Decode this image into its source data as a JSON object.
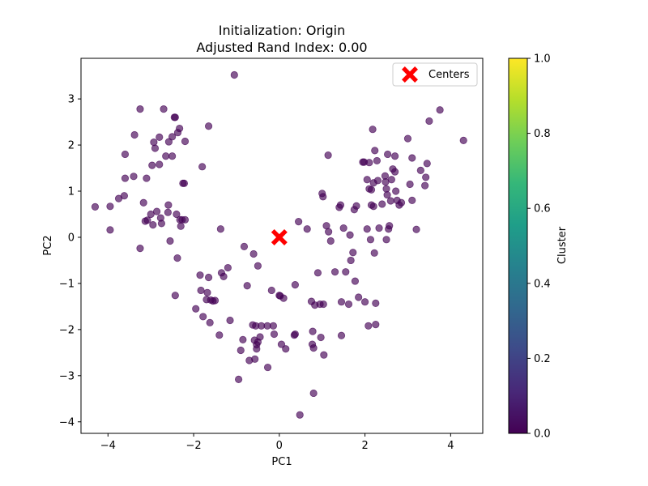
{
  "chart_data": {
    "type": "scatter",
    "title": "Initialization: Origin",
    "subtitle": "Adjusted Rand Index: 0.00",
    "xlabel": "PC1",
    "ylabel": "PC2",
    "xlim": [
      -4.63,
      4.75
    ],
    "ylim": [
      -4.25,
      3.88
    ],
    "xticks": [
      -4,
      -2,
      0,
      2,
      4
    ],
    "yticks": [
      -4,
      -3,
      -2,
      -1,
      0,
      1,
      2,
      3
    ],
    "xtick_labels": [
      "−4",
      "−2",
      "0",
      "2",
      "4"
    ],
    "ytick_labels": [
      "−4",
      "−3",
      "−2",
      "−1",
      "0",
      "1",
      "2",
      "3"
    ],
    "grid": false,
    "legend": {
      "position": "top-right",
      "entries": [
        "Centers"
      ]
    },
    "colorbar": {
      "label": "Cluster",
      "range": [
        0,
        1
      ],
      "ticks": [
        0.0,
        0.2,
        0.4,
        0.6,
        0.8,
        1.0
      ],
      "tick_labels": [
        "0.0",
        "0.2",
        "0.4",
        "0.6",
        "0.8",
        "1.0"
      ],
      "colormap": "viridis",
      "colors": [
        "#440154",
        "#482878",
        "#3e4a89",
        "#31688e",
        "#26828e",
        "#1f9e89",
        "#35b779",
        "#6ece58",
        "#b5de2b",
        "#fde725"
      ]
    },
    "point_color": "#440154",
    "point_alpha": 0.65,
    "center_color": "#ff0000",
    "centers": [
      [
        0.0,
        0.0
      ]
    ],
    "points": [
      [
        -4.3,
        0.66
      ],
      [
        -3.95,
        0.67
      ],
      [
        -3.95,
        0.16
      ],
      [
        -3.75,
        0.84
      ],
      [
        -3.62,
        0.9
      ],
      [
        -3.6,
        1.28
      ],
      [
        -3.6,
        1.8
      ],
      [
        -3.4,
        1.32
      ],
      [
        -3.38,
        2.22
      ],
      [
        -3.25,
        2.78
      ],
      [
        -3.25,
        -0.24
      ],
      [
        -3.17,
        0.75
      ],
      [
        -3.13,
        0.35
      ],
      [
        -3.1,
        1.28
      ],
      [
        -3.08,
        0.37
      ],
      [
        -3.0,
        0.5
      ],
      [
        -2.97,
        1.56
      ],
      [
        -2.95,
        0.27
      ],
      [
        -2.93,
        2.06
      ],
      [
        -2.9,
        1.93
      ],
      [
        -2.86,
        0.56
      ],
      [
        -2.8,
        1.58
      ],
      [
        -2.8,
        2.17
      ],
      [
        -2.77,
        0.42
      ],
      [
        -2.75,
        0.3
      ],
      [
        -2.7,
        2.78
      ],
      [
        -2.65,
        1.76
      ],
      [
        -2.6,
        0.54
      ],
      [
        -2.59,
        0.7
      ],
      [
        -2.58,
        2.07
      ],
      [
        -2.55,
        -0.08
      ],
      [
        -2.5,
        1.76
      ],
      [
        -2.5,
        2.18
      ],
      [
        -2.45,
        2.6
      ],
      [
        -2.43,
        2.6
      ],
      [
        -2.43,
        -1.26
      ],
      [
        -2.4,
        0.5
      ],
      [
        -2.38,
        -0.45
      ],
      [
        -2.37,
        2.27
      ],
      [
        -2.33,
        2.36
      ],
      [
        -2.32,
        0.38
      ],
      [
        -2.3,
        0.24
      ],
      [
        -2.27,
        0.38
      ],
      [
        -2.25,
        1.17
      ],
      [
        -2.22,
        1.17
      ],
      [
        -2.2,
        2.08
      ],
      [
        -2.2,
        0.38
      ],
      [
        -1.95,
        -1.55
      ],
      [
        -1.85,
        -0.82
      ],
      [
        -1.83,
        -1.15
      ],
      [
        -1.8,
        1.53
      ],
      [
        -1.78,
        -1.72
      ],
      [
        -1.7,
        -1.35
      ],
      [
        -1.68,
        -1.2
      ],
      [
        -1.65,
        2.41
      ],
      [
        -1.65,
        -0.87
      ],
      [
        -1.62,
        -1.85
      ],
      [
        -1.6,
        -1.36
      ],
      [
        -1.55,
        -1.38
      ],
      [
        -1.5,
        -1.37
      ],
      [
        -1.4,
        -2.12
      ],
      [
        -1.37,
        0.18
      ],
      [
        -1.35,
        -0.77
      ],
      [
        -1.3,
        -0.85
      ],
      [
        -1.2,
        -0.66
      ],
      [
        -1.15,
        -1.8
      ],
      [
        -1.05,
        3.52
      ],
      [
        -0.95,
        -3.08
      ],
      [
        -0.9,
        -2.45
      ],
      [
        -0.85,
        -2.22
      ],
      [
        -0.82,
        -0.2
      ],
      [
        -0.75,
        -1.05
      ],
      [
        -0.7,
        -2.67
      ],
      [
        -0.62,
        -1.9
      ],
      [
        -0.6,
        -0.36
      ],
      [
        -0.58,
        -2.23
      ],
      [
        -0.57,
        -2.64
      ],
      [
        -0.55,
        -1.92
      ],
      [
        -0.53,
        -2.33
      ],
      [
        -0.53,
        -2.42
      ],
      [
        -0.5,
        -2.27
      ],
      [
        -0.5,
        -0.62
      ],
      [
        -0.45,
        -2.16
      ],
      [
        -0.42,
        -1.92
      ],
      [
        -0.28,
        -1.92
      ],
      [
        -0.27,
        -2.82
      ],
      [
        -0.18,
        -1.15
      ],
      [
        -0.14,
        -1.92
      ],
      [
        -0.12,
        -2.1
      ],
      [
        0.0,
        -1.26
      ],
      [
        0.02,
        -1.27
      ],
      [
        0.05,
        -2.32
      ],
      [
        0.1,
        -1.32
      ],
      [
        0.15,
        -2.42
      ],
      [
        0.35,
        -2.12
      ],
      [
        0.37,
        -2.1
      ],
      [
        0.37,
        -1.03
      ],
      [
        0.45,
        0.34
      ],
      [
        0.48,
        -3.85
      ],
      [
        0.65,
        0.18
      ],
      [
        0.75,
        -1.39
      ],
      [
        0.77,
        -2.32
      ],
      [
        0.78,
        -2.04
      ],
      [
        0.8,
        -2.4
      ],
      [
        0.8,
        -3.38
      ],
      [
        0.83,
        -1.47
      ],
      [
        0.9,
        -0.77
      ],
      [
        0.95,
        -1.45
      ],
      [
        0.97,
        -2.17
      ],
      [
        1.0,
        0.95
      ],
      [
        1.02,
        0.88
      ],
      [
        1.03,
        -1.45
      ],
      [
        1.04,
        -2.55
      ],
      [
        1.1,
        0.25
      ],
      [
        1.14,
        1.78
      ],
      [
        1.15,
        0.12
      ],
      [
        1.2,
        -0.08
      ],
      [
        1.3,
        -0.75
      ],
      [
        1.4,
        0.65
      ],
      [
        1.43,
        0.7
      ],
      [
        1.45,
        -1.4
      ],
      [
        1.45,
        -2.13
      ],
      [
        1.5,
        0.2
      ],
      [
        1.55,
        -0.75
      ],
      [
        1.62,
        -1.45
      ],
      [
        1.65,
        0.05
      ],
      [
        1.67,
        -0.5
      ],
      [
        1.72,
        -0.33
      ],
      [
        1.75,
        0.6
      ],
      [
        1.77,
        -0.95
      ],
      [
        1.8,
        0.68
      ],
      [
        1.85,
        -1.3
      ],
      [
        1.95,
        1.63
      ],
      [
        1.98,
        1.63
      ],
      [
        2.0,
        -1.4
      ],
      [
        2.05,
        1.25
      ],
      [
        2.05,
        0.18
      ],
      [
        2.08,
        -1.92
      ],
      [
        2.1,
        1.05
      ],
      [
        2.1,
        1.62
      ],
      [
        2.13,
        -0.05
      ],
      [
        2.15,
        1.03
      ],
      [
        2.15,
        0.7
      ],
      [
        2.18,
        2.34
      ],
      [
        2.2,
        0.67
      ],
      [
        2.2,
        1.18
      ],
      [
        2.22,
        -0.34
      ],
      [
        2.23,
        1.88
      ],
      [
        2.25,
        -1.89
      ],
      [
        2.25,
        -1.43
      ],
      [
        2.28,
        1.66
      ],
      [
        2.3,
        1.23
      ],
      [
        2.33,
        0.2
      ],
      [
        2.4,
        0.72
      ],
      [
        2.47,
        1.33
      ],
      [
        2.48,
        1.2
      ],
      [
        2.5,
        1.05
      ],
      [
        2.5,
        -0.05
      ],
      [
        2.52,
        0.92
      ],
      [
        2.53,
        1.8
      ],
      [
        2.55,
        0.18
      ],
      [
        2.57,
        0.25
      ],
      [
        2.6,
        0.79
      ],
      [
        2.62,
        1.25
      ],
      [
        2.65,
        1.48
      ],
      [
        2.7,
        1.76
      ],
      [
        2.7,
        1.42
      ],
      [
        2.72,
        1.0
      ],
      [
        2.75,
        0.8
      ],
      [
        2.8,
        0.7
      ],
      [
        2.85,
        0.75
      ],
      [
        3.0,
        2.14
      ],
      [
        3.05,
        1.15
      ],
      [
        3.1,
        0.8
      ],
      [
        3.1,
        1.72
      ],
      [
        3.2,
        0.17
      ],
      [
        3.3,
        1.45
      ],
      [
        3.4,
        1.12
      ],
      [
        3.42,
        1.3
      ],
      [
        3.45,
        1.6
      ],
      [
        3.5,
        2.52
      ],
      [
        3.75,
        2.76
      ],
      [
        4.3,
        2.1
      ]
    ]
  }
}
